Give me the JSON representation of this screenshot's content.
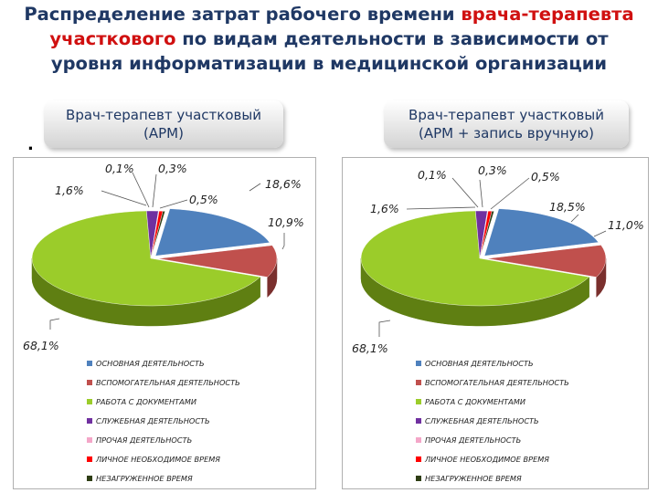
{
  "title": {
    "line1_a": "Распределение затрат рабочего времени ",
    "line1_b": "врача-терапевта",
    "line2_a": "участкового",
    "line2_b": " по видам деятельности в зависимости от",
    "line3": "уровня информатизации в медицинской организации"
  },
  "colors": {
    "title": "#1f3864",
    "highlight": "#d01010"
  },
  "chart_data": [
    {
      "type": "pie",
      "heading": [
        "Врач-терапевт участковый",
        "(АРМ)"
      ],
      "slices": [
        {
          "label": "ОСНОВНАЯ ДЕЯТЕЛЬНОСТЬ",
          "value": 18.6,
          "text": "18,6%",
          "color": "#4f81bd",
          "side": "#2c4d75"
        },
        {
          "label": "ВСПОМОГАТЕЛЬНАЯ ДЕЯТЕЛЬНОСТЬ",
          "value": 10.9,
          "text": "10,9%",
          "color": "#c0504d",
          "side": "#7a2f2d"
        },
        {
          "label": "РАБОТА С ДОКУМЕНТАМИ",
          "value": 68.1,
          "text": "68,1%",
          "color": "#9bcc2a",
          "side": "#5f7f12"
        },
        {
          "label": "СЛУЖЕБНАЯ ДЕЯТЕЛЬНОСТЬ",
          "value": 1.6,
          "text": "1,6%",
          "color": "#7030a0",
          "side": "#43185f"
        },
        {
          "label": "ПРОЧАЯ ДЕЯТЕЛЬНОСТЬ",
          "value": 0.1,
          "text": "0,1%",
          "color": "#f4a6c8",
          "side": "#a86f88"
        },
        {
          "label": "ЛИЧНОЕ НЕОБХОДИМОЕ ВРЕМЯ",
          "value": 0.5,
          "text": "0,5%",
          "color": "#ff0000",
          "side": "#a00000"
        },
        {
          "label": "НЕЗАГРУЖЕННОЕ ВРЕМЯ",
          "value": 0.3,
          "text": "0,3%",
          "color": "#2e3d14",
          "side": "#151c08"
        }
      ]
    },
    {
      "type": "pie",
      "heading": [
        "Врач-терапевт участковый",
        "(АРМ + запись вручную)"
      ],
      "slices": [
        {
          "label": "ОСНОВНАЯ ДЕЯТЕЛЬНОСТЬ",
          "value": 18.5,
          "text": "18,5%",
          "color": "#4f81bd",
          "side": "#2c4d75"
        },
        {
          "label": "ВСПОМОГАТЕЛЬНАЯ ДЕЯТЕЛЬНОСТЬ",
          "value": 11.0,
          "text": "11,0%",
          "color": "#c0504d",
          "side": "#7a2f2d"
        },
        {
          "label": "РАБОТА С ДОКУМЕНТАМИ",
          "value": 68.1,
          "text": "68,1%",
          "color": "#9bcc2a",
          "side": "#5f7f12"
        },
        {
          "label": "СЛУЖЕБНАЯ ДЕЯТЕЛЬНОСТЬ",
          "value": 1.6,
          "text": "1,6%",
          "color": "#7030a0",
          "side": "#43185f"
        },
        {
          "label": "ПРОЧАЯ ДЕЯТЕЛЬНОСТЬ",
          "value": 0.1,
          "text": "0,1%",
          "color": "#f4a6c8",
          "side": "#a86f88"
        },
        {
          "label": "ЛИЧНОЕ НЕОБХОДИМОЕ ВРЕМЯ",
          "value": 0.5,
          "text": "0,5%",
          "color": "#ff0000",
          "side": "#a00000"
        },
        {
          "label": "НЕЗАГРУЖЕННОЕ ВРЕМЯ",
          "value": 0.3,
          "text": "0,3%",
          "color": "#2e3d14",
          "side": "#151c08"
        }
      ]
    }
  ]
}
